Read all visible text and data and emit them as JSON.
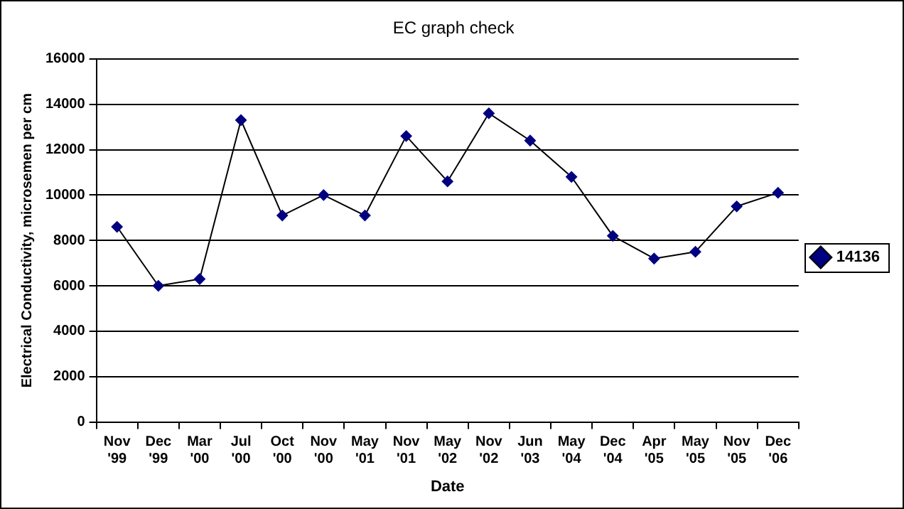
{
  "chart_data": {
    "type": "line",
    "title": "EC graph check",
    "xlabel": "Date",
    "ylabel": "Electrical Conductivity, microsemen per cm",
    "categories": [
      "Nov '99",
      "Dec '99",
      "Mar '00",
      "Jul '00",
      "Oct '00",
      "Nov '00",
      "May '01",
      "Nov '01",
      "May '02",
      "Nov '02",
      "Jun '03",
      "May '04",
      "Dec '04",
      "Apr '05",
      "May '05",
      "Nov '05",
      "Dec '06"
    ],
    "series": [
      {
        "name": "14136",
        "color": "#000080",
        "values": [
          8600,
          6000,
          6300,
          13300,
          9100,
          10000,
          9100,
          12600,
          10600,
          13600,
          12400,
          10800,
          8200,
          7200,
          7500,
          9500,
          10100
        ]
      }
    ],
    "ylim": [
      0,
      16000
    ],
    "yticks": [
      0,
      2000,
      4000,
      6000,
      8000,
      10000,
      12000,
      14000,
      16000
    ],
    "grid": "y",
    "legend": "right",
    "marker": "diamond",
    "line_style": "solid"
  }
}
